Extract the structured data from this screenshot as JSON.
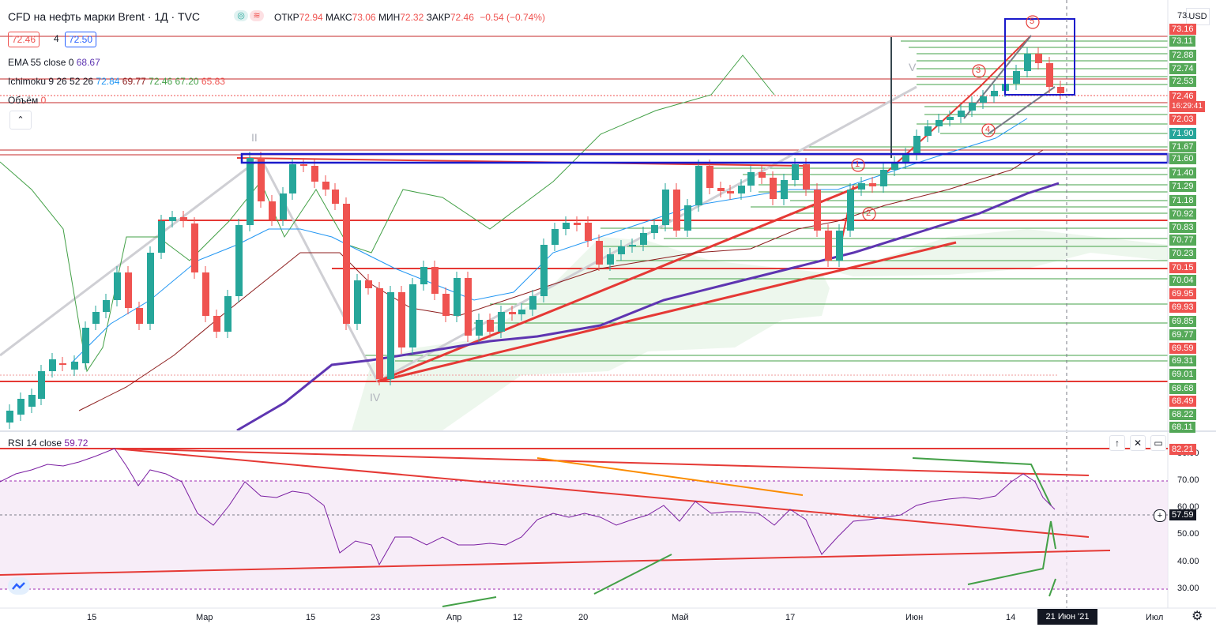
{
  "header": {
    "symbol": "CFD на нефть марки Brent · 1Д · TVC",
    "ohlc": [
      {
        "label": "ОТКР",
        "value": "72.94"
      },
      {
        "label": "МАКС",
        "value": "73.06"
      },
      {
        "label": "МИН",
        "value": "72.32"
      },
      {
        "label": "ЗАКР",
        "value": "72.46"
      }
    ],
    "change": "−0.54 (−0.74%)",
    "bid": "72.46",
    "spread": "4",
    "ask": "72.50",
    "collapse_icon": "chevron-up-icon",
    "collapse_glyph": "⌃"
  },
  "indicators": {
    "ema": {
      "name": "EMA 55 close 0",
      "value": "68.67"
    },
    "ichimoku": {
      "name": "Ichimoku 9 26 52 26",
      "values": [
        "72.84",
        "69.77",
        "72.46",
        "67.20",
        "65.83"
      ]
    },
    "volume": {
      "name": "Объём",
      "value": "0"
    },
    "rsi": {
      "name": "RSI 14 close",
      "value": "59.72"
    }
  },
  "price_axis": {
    "currency": "USD",
    "labels": [
      "73.11",
      "72.88",
      "72.74",
      "72.53",
      "72.03",
      "71.90",
      "71.67",
      "71.60",
      "71.40",
      "71.29",
      "71.18",
      "70.92",
      "70.83",
      "70.77",
      "70.23",
      "70.15",
      "70.04",
      "69.95",
      "69.93",
      "69.85",
      "69.77",
      "69.59",
      "69.31",
      "69.01",
      "68.68",
      "68.49",
      "68.22",
      "68.11"
    ],
    "top_partial": "73.",
    "current_price": "72.46",
    "countdown": "16:29:41",
    "tag_73_16": "73.16"
  },
  "rsi_axis": {
    "labels": [
      "80.00",
      "70.00",
      "60.00",
      "50.00",
      "40.00",
      "30.00"
    ],
    "tag_high": "82.21",
    "tag_cursor": "57.59"
  },
  "time_axis": {
    "labels": [
      "15",
      "Мар",
      "15",
      "23",
      "Апр",
      "12",
      "20",
      "Май",
      "17",
      "Июн",
      "14",
      "Июл"
    ],
    "current_date": "21 Июн '21"
  },
  "waves": {
    "roman": [
      "II",
      "IV",
      "V"
    ],
    "circled": [
      "1",
      "2",
      "3",
      "4",
      "5"
    ]
  },
  "colors": {
    "up": "#26a69a",
    "down": "#ef5350",
    "ema": "#5e35b1",
    "rsi": "#7b1fa2",
    "accent": "#2962ff"
  }
}
